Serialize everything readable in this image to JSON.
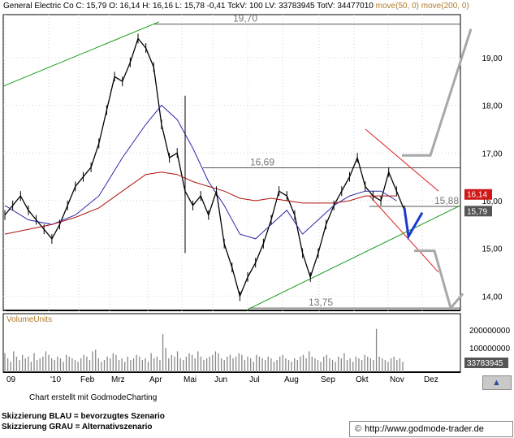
{
  "header": {
    "title": "General Electric Co",
    "stats": "C: 15,79 O: 16,14 H: 16,16 L: 15,78 -0,41 TckV: 100 LV: 33783945 TotV: 34477010",
    "ma_legend": "move(50, 0) move(200, 0)"
  },
  "colors": {
    "price": "#000000",
    "ma50": "#2a2aaa",
    "ma200": "#b01010",
    "channel_up": "#1a9a1a",
    "channel_down": "#e02020",
    "scenario_blue": "#1a3ad0",
    "scenario_gray": "#a8a8a8",
    "volume": "#888888",
    "label_red_bg": "#d01818",
    "label_gray_bg": "#555555"
  },
  "chart_data": {
    "type": "line",
    "title": "General Electric Co",
    "x_ticks": [
      "09",
      "'10",
      "Feb",
      "Mrz",
      "Apr",
      "Mai",
      "Jun",
      "Jul",
      "Aug",
      "Sep",
      "Okt",
      "Nov",
      "Dez"
    ],
    "y_ticks": [
      "19,00",
      "18,00",
      "17,00",
      "16,00",
      "15,00",
      "14,00"
    ],
    "ylim": [
      13.7,
      19.9
    ],
    "series": [
      {
        "name": "",
        "key": "price",
        "points": [
          [
            0,
            15.7
          ],
          [
            1,
            15.9
          ],
          [
            2,
            16.1
          ],
          [
            3,
            15.8
          ],
          [
            4,
            15.6
          ],
          [
            5,
            15.4
          ],
          [
            6,
            15.2
          ],
          [
            7,
            15.5
          ],
          [
            8,
            15.9
          ],
          [
            9,
            16.3
          ],
          [
            10,
            16.5
          ],
          [
            11,
            16.7
          ],
          [
            12,
            17.2
          ],
          [
            13,
            17.9
          ],
          [
            14,
            18.6
          ],
          [
            15,
            18.5
          ],
          [
            16,
            18.9
          ],
          [
            17,
            19.4
          ],
          [
            18,
            19.2
          ],
          [
            19,
            18.8
          ],
          [
            20,
            17.6
          ],
          [
            21,
            16.9
          ],
          [
            22,
            17.0
          ],
          [
            23,
            16.2
          ],
          [
            24,
            15.9
          ],
          [
            25,
            16.1
          ],
          [
            26,
            15.7
          ],
          [
            27,
            16.2
          ],
          [
            28,
            15.1
          ],
          [
            29,
            14.6
          ],
          [
            30,
            14.0
          ],
          [
            31,
            14.4
          ],
          [
            32,
            14.7
          ],
          [
            33,
            15.1
          ],
          [
            34,
            15.6
          ],
          [
            35,
            16.2
          ],
          [
            36,
            16.1
          ],
          [
            37,
            15.7
          ],
          [
            38,
            14.9
          ],
          [
            39,
            14.4
          ],
          [
            40,
            14.9
          ],
          [
            41,
            15.5
          ],
          [
            42,
            15.9
          ],
          [
            43,
            16.2
          ],
          [
            44,
            16.5
          ],
          [
            45,
            16.9
          ],
          [
            46,
            16.3
          ],
          [
            47,
            16.1
          ],
          [
            48,
            16.0
          ],
          [
            49,
            16.6
          ],
          [
            50,
            16.2
          ],
          [
            51,
            15.8
          ]
        ]
      },
      {
        "name": "move(50, 0)",
        "key": "ma50",
        "points": [
          [
            0,
            15.9
          ],
          [
            3,
            15.6
          ],
          [
            6,
            15.5
          ],
          [
            9,
            15.7
          ],
          [
            12,
            16.1
          ],
          [
            15,
            16.9
          ],
          [
            18,
            17.6
          ],
          [
            20,
            18.0
          ],
          [
            22,
            17.7
          ],
          [
            24,
            17.1
          ],
          [
            26,
            16.4
          ],
          [
            28,
            15.9
          ],
          [
            30,
            15.3
          ],
          [
            32,
            15.2
          ],
          [
            34,
            15.5
          ],
          [
            36,
            15.8
          ],
          [
            38,
            15.3
          ],
          [
            40,
            15.6
          ],
          [
            42,
            15.9
          ],
          [
            44,
            16.1
          ],
          [
            46,
            16.2
          ],
          [
            48,
            16.2
          ],
          [
            50,
            16.0
          ]
        ]
      },
      {
        "name": "move(200, 0)",
        "key": "ma200",
        "points": [
          [
            0,
            15.3
          ],
          [
            3,
            15.4
          ],
          [
            6,
            15.5
          ],
          [
            9,
            15.65
          ],
          [
            12,
            15.85
          ],
          [
            15,
            16.2
          ],
          [
            18,
            16.55
          ],
          [
            20,
            16.6
          ],
          [
            22,
            16.55
          ],
          [
            24,
            16.4
          ],
          [
            26,
            16.3
          ],
          [
            28,
            16.2
          ],
          [
            30,
            16.05
          ],
          [
            32,
            16.0
          ],
          [
            34,
            16.05
          ],
          [
            36,
            16.0
          ],
          [
            38,
            15.95
          ],
          [
            40,
            15.95
          ],
          [
            42,
            15.95
          ],
          [
            44,
            16.0
          ],
          [
            46,
            16.1
          ],
          [
            48,
            16.1
          ],
          [
            50,
            16.1
          ]
        ]
      }
    ],
    "volume": [
      11,
      8,
      6,
      12,
      9,
      7,
      10,
      8,
      9,
      6,
      11,
      7,
      8,
      9,
      12,
      10,
      8,
      7,
      9,
      8,
      6,
      10,
      9,
      8,
      7,
      6,
      8,
      10,
      9,
      7,
      12,
      13,
      8,
      6,
      7,
      9,
      8,
      11,
      10,
      7,
      8,
      6,
      9,
      7,
      8,
      10,
      9,
      7,
      8,
      6,
      11,
      8,
      9,
      7,
      22,
      14,
      8,
      10,
      9,
      12,
      8,
      7,
      9,
      11,
      10,
      8,
      12,
      9,
      7,
      8,
      9,
      10,
      12,
      11,
      8,
      7,
      9,
      10,
      8,
      9,
      11,
      10,
      7,
      9,
      8,
      6,
      10,
      9,
      8,
      7,
      9,
      8,
      6,
      7,
      9,
      10,
      8,
      7,
      6,
      8,
      7,
      9,
      10,
      8,
      12,
      9,
      8,
      7,
      6,
      9,
      10,
      8,
      7,
      6,
      9,
      8,
      11,
      7,
      8,
      6,
      9,
      8,
      7,
      10,
      9,
      8,
      7,
      25,
      9,
      8,
      7,
      6,
      8,
      9,
      7,
      8,
      6
    ],
    "volume_label": "VolumeUnits",
    "volume_ticks": [
      "200000000",
      "100000000"
    ],
    "volume_last": "33783945",
    "levels": [
      {
        "label": "19,70",
        "value": 19.7
      },
      {
        "label": "16,69",
        "value": 16.69
      },
      {
        "label": "15,88",
        "value": 15.88
      },
      {
        "label": "13,75",
        "value": 13.75
      }
    ],
    "price_markers": [
      {
        "label": "16,14",
        "value": 16.14,
        "style": "red"
      },
      {
        "label": "15,79",
        "value": 15.79,
        "style": "gray"
      }
    ],
    "grid": true
  },
  "footer": {
    "credit": "Chart erstellt mit GodmodeCharting",
    "legend_blue": "Skizzierung BLAU = bevorzugtes Szenario",
    "legend_gray": "Skizzierung GRAU = Alternativszenario",
    "url": "http://www.godmode-trader.de",
    "url_icon": "copyright-icon",
    "corner_icon": "chart-mountain-icon"
  }
}
